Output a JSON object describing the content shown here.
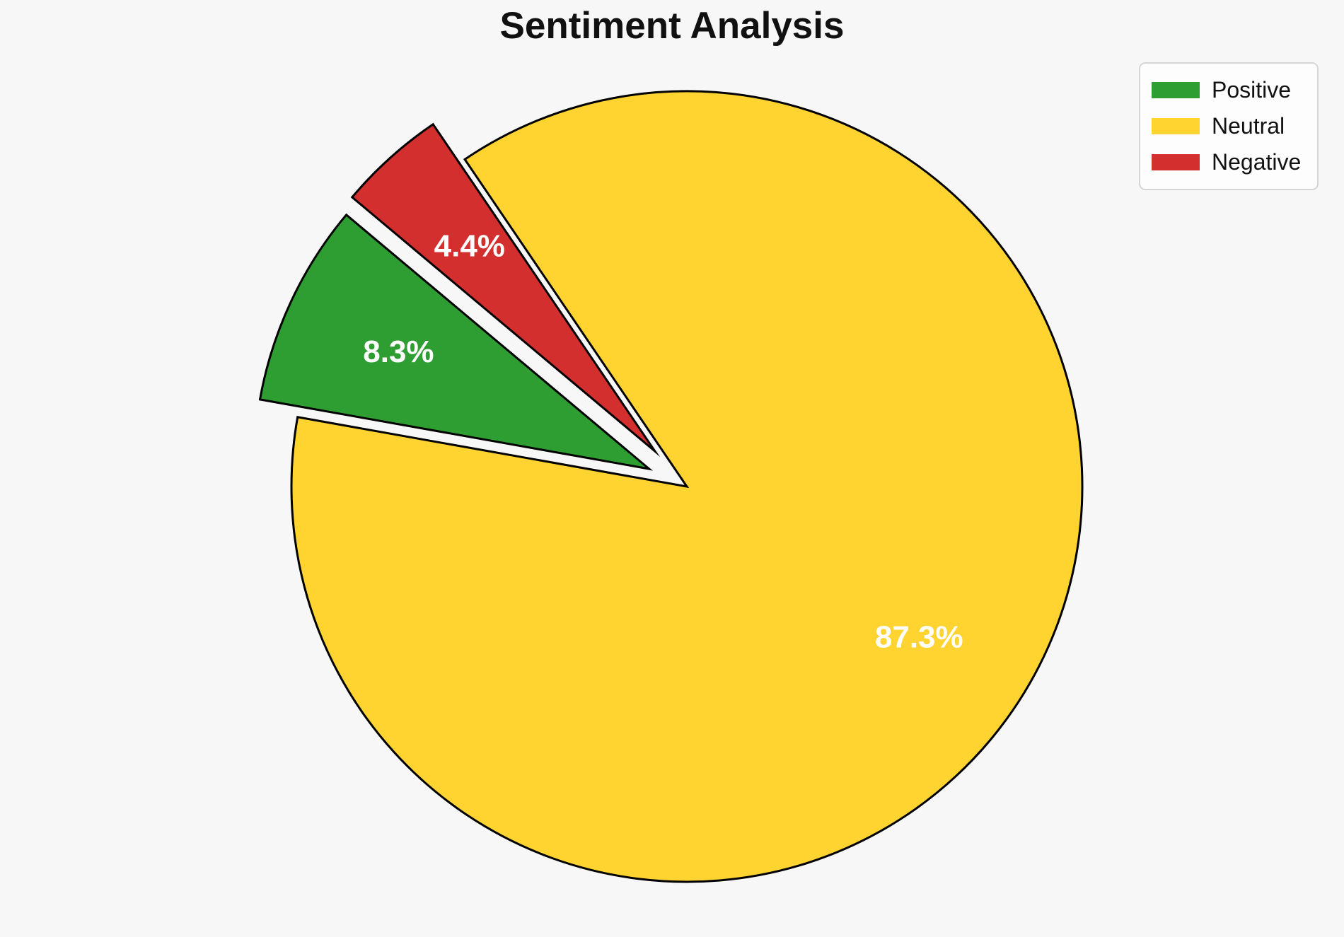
{
  "colors": {
    "background": "#f7f7f8",
    "title_text": "#111111",
    "wedge_border": "#000000",
    "pct_label_text": "#ffffff",
    "legend_background": "#fdfdfd",
    "legend_border": "#d6d6d6",
    "legend_text": "#111111"
  },
  "chart_data": {
    "type": "pie",
    "title": "Sentiment Analysis",
    "slices": [
      {
        "name": "Positive",
        "value": 8.3,
        "pct_label": "8.3%",
        "color": "#2e9e33"
      },
      {
        "name": "Neutral",
        "value": 87.3,
        "pct_label": "87.3%",
        "color": "#ffd330"
      },
      {
        "name": "Negative",
        "value": 4.4,
        "pct_label": "4.4%",
        "color": "#d32f2f"
      }
    ],
    "start_angle_deg": 140,
    "direction": "counterclockwise",
    "explode": [
      0.105,
      0,
      0.12
    ],
    "pct_label_distance": 0.7,
    "legend_position": "upper right",
    "pct_labels_inside": true
  }
}
